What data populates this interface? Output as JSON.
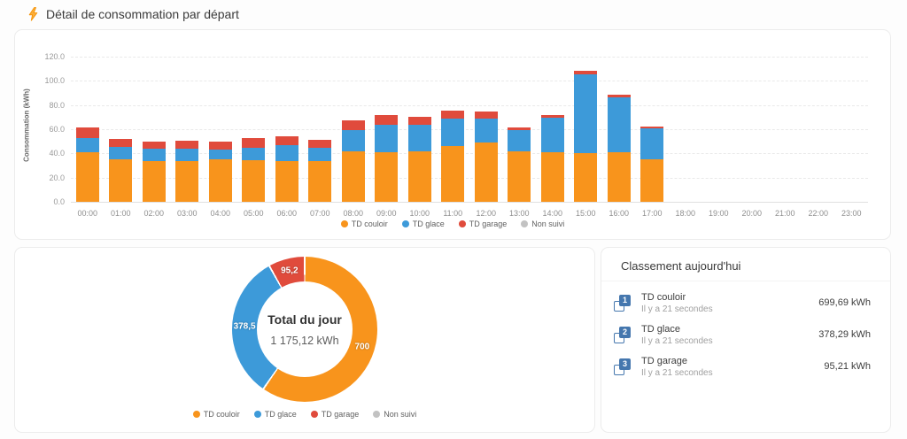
{
  "page": {
    "title": "Détail de consommation par départ"
  },
  "colors": {
    "couloir": "#f8941c",
    "glace": "#3d9ad9",
    "garage": "#e04b3c",
    "non_suivi": "#c2c2c2",
    "rank_badge": "#4577ae"
  },
  "chart_data": [
    {
      "type": "bar",
      "stacked": true,
      "ylabel": "Consommation (kWh)",
      "ylim": [
        0,
        120
      ],
      "yticks": [
        0,
        20,
        40,
        60,
        80,
        100,
        120
      ],
      "ytick_labels": [
        "0.0",
        "20.0",
        "40.0",
        "60.0",
        "80.0",
        "100.0",
        "120.0"
      ],
      "grid": true,
      "legend_position": "bottom",
      "categories": [
        "00:00",
        "01:00",
        "02:00",
        "03:00",
        "04:00",
        "05:00",
        "06:00",
        "07:00",
        "08:00",
        "09:00",
        "10:00",
        "11:00",
        "12:00",
        "13:00",
        "14:00",
        "15:00",
        "16:00",
        "17:00",
        "18:00",
        "19:00",
        "20:00",
        "21:00",
        "22:00",
        "23:00"
      ],
      "series": [
        {
          "name": "TD couloir",
          "color": "#f8941c",
          "values": [
            41,
            35,
            34,
            34,
            35,
            34.5,
            33.5,
            34,
            42,
            41,
            42,
            46,
            49,
            42,
            41,
            40,
            41,
            35,
            0,
            0,
            0,
            0,
            0,
            0
          ]
        },
        {
          "name": "TD glace",
          "color": "#3d9ad9",
          "values": [
            12,
            10.5,
            10,
            10,
            8.5,
            10.5,
            13,
            10.5,
            17.5,
            23,
            22,
            23,
            19.5,
            17.5,
            28.5,
            65.5,
            45,
            26,
            0,
            0,
            0,
            0,
            0,
            0
          ]
        },
        {
          "name": "TD garage",
          "color": "#e04b3c",
          "values": [
            8.5,
            6.5,
            6,
            6.5,
            6,
            7.5,
            7.5,
            6.5,
            8,
            7.5,
            6,
            6.5,
            6.5,
            2,
            2,
            2.5,
            2.5,
            1.5,
            0,
            0,
            0,
            0,
            0,
            0
          ]
        },
        {
          "name": "Non suivi",
          "color": "#c2c2c2",
          "values": [
            0,
            0,
            0,
            0,
            0,
            0,
            0,
            0,
            0,
            0,
            0,
            0,
            0,
            0,
            0,
            0,
            0,
            0,
            0,
            0,
            0,
            0,
            0,
            0
          ]
        }
      ]
    },
    {
      "type": "pie",
      "donut": true,
      "center_title": "Total du jour",
      "center_value": "1 175,12 kWh",
      "slices": [
        {
          "label": "TD couloir",
          "value": 700,
          "display": "700",
          "color": "#f8941c"
        },
        {
          "label": "TD glace",
          "value": 378.5,
          "display": "378,5",
          "color": "#3d9ad9"
        },
        {
          "label": "TD garage",
          "value": 95.2,
          "display": "95,2",
          "color": "#e04b3c"
        }
      ],
      "legend": [
        {
          "label": "TD couloir",
          "color": "#f8941c"
        },
        {
          "label": "TD glace",
          "color": "#3d9ad9"
        },
        {
          "label": "TD garage",
          "color": "#e04b3c"
        },
        {
          "label": "Non suivi",
          "color": "#c2c2c2"
        }
      ]
    }
  ],
  "ranking": {
    "title": "Classement aujourd'hui",
    "items": [
      {
        "rank": "1",
        "name": "TD couloir",
        "time": "Il y a 21 secondes",
        "value": "699,69 kWh"
      },
      {
        "rank": "2",
        "name": "TD glace",
        "time": "Il y a 21 secondes",
        "value": "378,29 kWh"
      },
      {
        "rank": "3",
        "name": "TD garage",
        "time": "Il y a 21 secondes",
        "value": "95,21 kWh"
      }
    ]
  }
}
